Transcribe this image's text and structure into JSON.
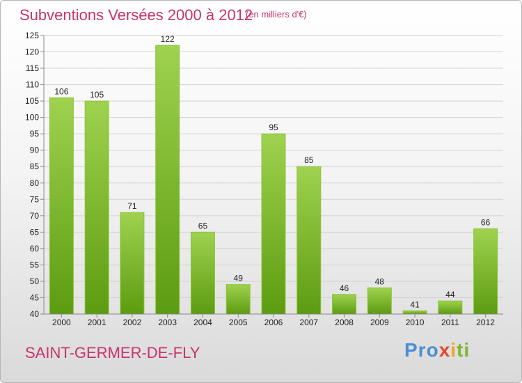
{
  "header": {
    "title": "Subventions Versées 2000 à 2012",
    "unit": "(en milliers d'€)"
  },
  "footer": {
    "commune": "SAINT-GERMER-DE-FLY",
    "logo_text": "Proxiti"
  },
  "colors": {
    "title": "#c8336b",
    "bar_top": "#9fd24f",
    "bar_bottom": "#5c9c10"
  },
  "chart_data": {
    "type": "bar",
    "title": "Subventions Versées 2000 à 2012",
    "subtitle": "(en milliers d'€)",
    "categories": [
      "2000",
      "2001",
      "2002",
      "2003",
      "2004",
      "2005",
      "2006",
      "2007",
      "2008",
      "2009",
      "2010",
      "2011",
      "2012"
    ],
    "values": [
      106,
      105,
      71,
      122,
      65,
      49,
      95,
      85,
      46,
      48,
      41,
      44,
      66
    ],
    "ylim": [
      40,
      125
    ],
    "yticks": [
      40,
      45,
      50,
      55,
      60,
      65,
      70,
      75,
      80,
      85,
      90,
      95,
      100,
      105,
      110,
      115,
      120,
      125
    ],
    "grid": true
  }
}
